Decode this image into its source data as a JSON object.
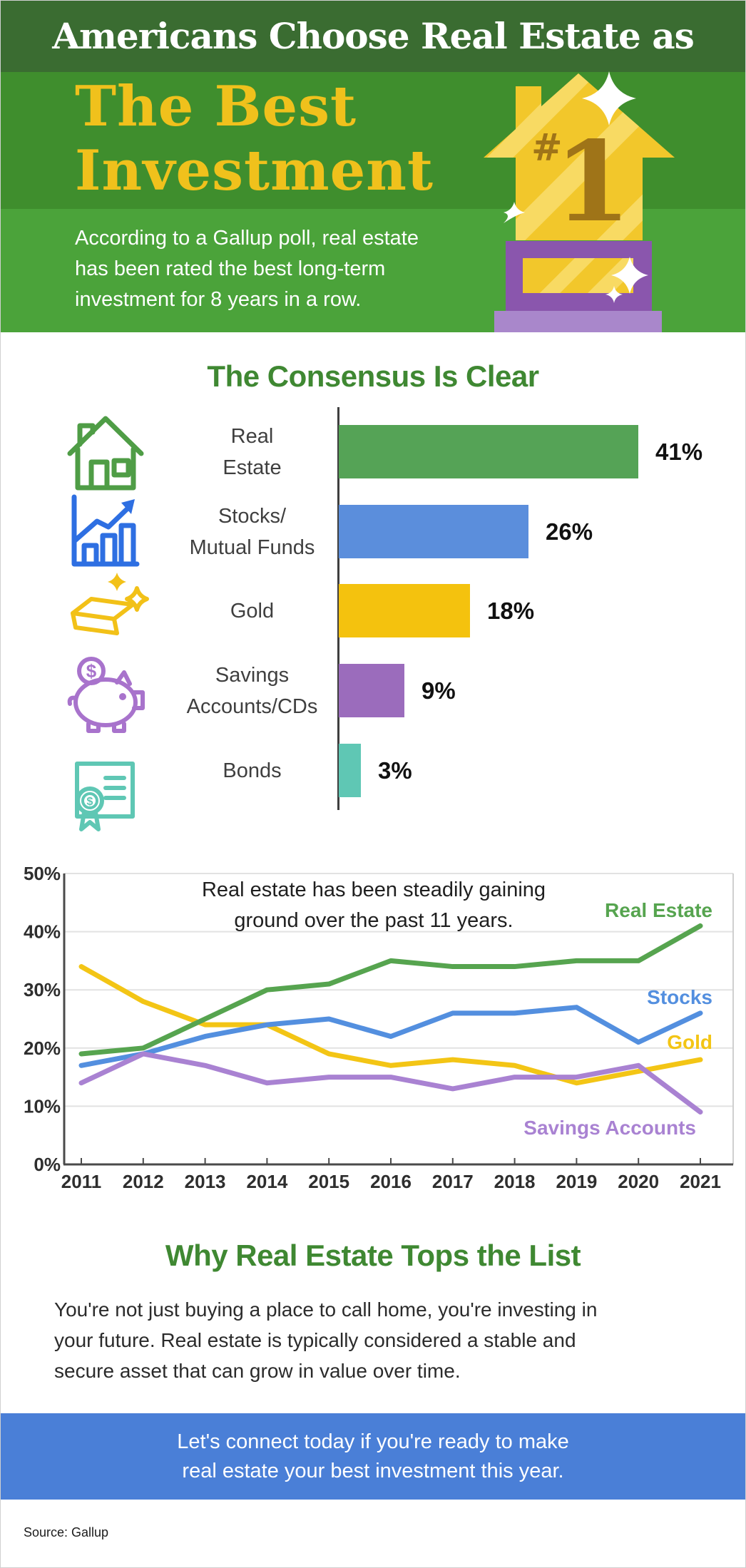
{
  "header": {
    "kicker": "Americans Choose Real Estate as",
    "title": "The Best\nInvestment",
    "subtitle": "According to a Gallup poll, real estate\nhas been rated the best long-term\ninvestment for 8 years in a row.",
    "trophy": {
      "hash": "#",
      "number": "1"
    }
  },
  "chart_data": [
    {
      "type": "bar",
      "title": "The Consensus Is Clear",
      "orientation": "horizontal",
      "unit": "%",
      "xlim": [
        0,
        41
      ],
      "categories": [
        "Real Estate",
        "Stocks/Mutual Funds",
        "Gold",
        "Savings Accounts/CDs",
        "Bonds"
      ],
      "values": [
        41,
        26,
        18,
        9,
        3
      ],
      "rows": [
        {
          "label": "Real\nEstate",
          "value": 41,
          "pct": "41%",
          "color": "#55a356",
          "icon": "house-icon"
        },
        {
          "label": "Stocks/\nMutual Funds",
          "value": 26,
          "pct": "26%",
          "color": "#5b8edc",
          "icon": "stock-chart-icon"
        },
        {
          "label": "Gold",
          "value": 18,
          "pct": "18%",
          "color": "#f4c20e",
          "icon": "gold-bars-icon"
        },
        {
          "label": "Savings\nAccounts/CDs",
          "value": 9,
          "pct": "9%",
          "color": "#9b6cbc",
          "icon": "piggy-bank-icon"
        },
        {
          "label": "Bonds",
          "value": 3,
          "pct": "3%",
          "color": "#5fc7b4",
          "icon": "bond-certificate-icon"
        }
      ]
    },
    {
      "type": "line",
      "annotation": "Real estate has been steadily gaining\nground over the past 11 years.",
      "x": [
        "2011",
        "2012",
        "2013",
        "2014",
        "2015",
        "2016",
        "2017",
        "2018",
        "2019",
        "2020",
        "2021"
      ],
      "ylim": [
        0,
        50
      ],
      "y_ticks": [
        "50%",
        "40%",
        "30%",
        "20%",
        "10%",
        "0%"
      ],
      "grid": true,
      "legend_position": "right-inline",
      "series": [
        {
          "name": "Real Estate",
          "color": "#56a44f",
          "values": [
            19,
            20,
            25,
            30,
            31,
            35,
            34,
            34,
            35,
            35,
            41
          ]
        },
        {
          "name": "Stocks",
          "color": "#538fdf",
          "values": [
            17,
            19,
            22,
            24,
            25,
            22,
            26,
            26,
            27,
            21,
            26
          ]
        },
        {
          "name": "Gold",
          "color": "#f3c515",
          "values": [
            34,
            28,
            24,
            24,
            19,
            17,
            18,
            17,
            14,
            16,
            18
          ]
        },
        {
          "name": "Savings Accounts",
          "color": "#a982d2",
          "values": [
            14,
            19,
            17,
            14,
            15,
            15,
            13,
            15,
            15,
            17,
            9
          ]
        }
      ]
    }
  ],
  "why": {
    "title": "Why Real Estate Tops the List",
    "body": "You're not just buying a place to call home, you're investing in\nyour future. Real estate is typically considered a stable and\nsecure asset that can grow in value over time."
  },
  "cta": {
    "text": "Let's connect today if you're ready to make\nreal estate your best investment this year."
  },
  "footer": {
    "source": "Source: Gallup"
  }
}
